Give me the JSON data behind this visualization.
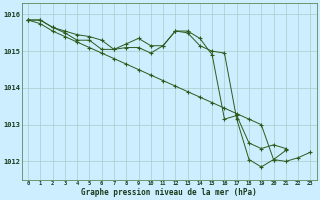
{
  "title": "Graphe pression niveau de la mer (hPa)",
  "background_color": "#cceeff",
  "grid_color": "#aacccc",
  "line_color": "#2d5a1b",
  "ylim": [
    1011.5,
    1016.3
  ],
  "yticks": [
    1012,
    1013,
    1014,
    1015,
    1016
  ],
  "xlim": [
    -0.5,
    23.5
  ],
  "x_labels": [
    "0",
    "1",
    "2",
    "3",
    "4",
    "5",
    "6",
    "7",
    "8",
    "9",
    "10",
    "11",
    "12",
    "13",
    "14",
    "15",
    "16",
    "17",
    "18",
    "19",
    "20",
    "21",
    "22",
    "23"
  ],
  "series1": [
    1015.85,
    1015.85,
    1015.65,
    1015.55,
    1015.45,
    1015.4,
    1015.3,
    1015.05,
    1015.2,
    1015.35,
    1015.15,
    1015.15,
    1015.55,
    1015.5,
    1015.15,
    1015.0,
    1014.95,
    1013.15,
    1012.05,
    1011.85,
    1012.05,
    1012.3,
    null,
    null
  ],
  "series2": [
    1015.85,
    1015.85,
    1015.65,
    1015.5,
    1015.3,
    1015.3,
    1015.05,
    1015.05,
    1015.1,
    1015.1,
    1014.95,
    1015.15,
    1015.55,
    1015.55,
    1015.35,
    1014.9,
    1013.15,
    1013.25,
    1012.5,
    1012.35,
    1012.45,
    1012.35,
    null,
    null
  ],
  "series3": [
    1015.85,
    1015.75,
    1015.55,
    1015.4,
    1015.25,
    1015.1,
    1014.95,
    1014.8,
    1014.65,
    1014.5,
    1014.35,
    1014.2,
    1014.05,
    1013.9,
    1013.75,
    1013.6,
    1013.45,
    1013.3,
    1013.15,
    1013.0,
    1012.05,
    1012.0,
    1012.1,
    1012.25
  ]
}
